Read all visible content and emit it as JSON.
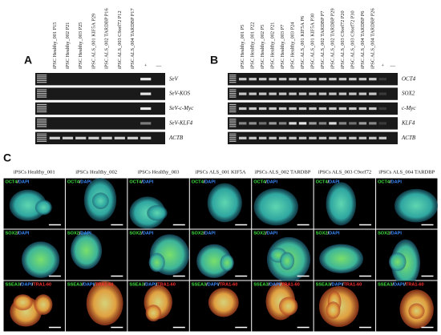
{
  "panel_a": {
    "label": "A",
    "lanes": [
      "iPSC Healthy_001 P15",
      "iPSC Healthy_002 P21",
      "iPSC Healthy_003 P25",
      "iPSC ALS_001 KIF5A P29",
      "iPSC ALS_002 TARDBP P16",
      "iPSC ALS_003 C9orf72 P12",
      "iPSC ALS_004 TARDBP P17",
      "+",
      "—"
    ],
    "rows": [
      "SeV",
      "SeV-KOS",
      "SeV-c-Myc",
      "SeV-KLF4",
      "ACTB"
    ]
  },
  "panel_b": {
    "label": "B",
    "lanes": [
      "iPSC Healthy_001 P5",
      "iPSC Healthy_001 P22",
      "iPSC Healthy_002 P5",
      "iPSC Healthy_002 P21",
      "iPSC Healthy_003 P7",
      "iPSC Healthy_003 P24",
      "iPSC ALS_001 KIF5A P6",
      "iPSC ALS_001 KIF5A P30",
      "iPSC ALS_002 TARDBP P7",
      "iPSC ALS_002 TARDBP P29",
      "iPSC ALS_003 C9orf72 P20",
      "iPSC ALS_003 C9orf72 P30",
      "iPSC ALS_004 TARDBP P6",
      "iPSC ALS_004 TARDBP P26",
      "+",
      "—"
    ],
    "rows": [
      "OCT4",
      "SOX2",
      "c-Myc",
      "KLF4",
      "ACTB"
    ]
  },
  "panel_c": {
    "label": "C",
    "columns": [
      "iPSCs Healthy_001",
      "iPSCs Healthy_002",
      "iPSCs Healthy_003",
      "iPSCs ALS_001 KIF5A",
      "iPSCs ALS_002 TARDBP",
      "iPSCs ALS_003 C9orf72",
      "iPSCs ALS_004 TARDBP"
    ],
    "rows": [
      {
        "parts": [
          "OCT4",
          "/",
          "DAPI"
        ],
        "colors": [
          "#3fe03f",
          "#ffffff",
          "#3a8cff"
        ]
      },
      {
        "parts": [
          "SOX2",
          "/",
          "DAPI"
        ],
        "colors": [
          "#3fe03f",
          "#ffffff",
          "#3a8cff"
        ]
      },
      {
        "parts": [
          "SSEA3",
          "/",
          "DAPI",
          "/",
          "TRA1-60"
        ],
        "colors": [
          "#3fe03f",
          "#ffffff",
          "#3a8cff",
          "#ffffff",
          "#ff3030"
        ]
      }
    ]
  }
}
